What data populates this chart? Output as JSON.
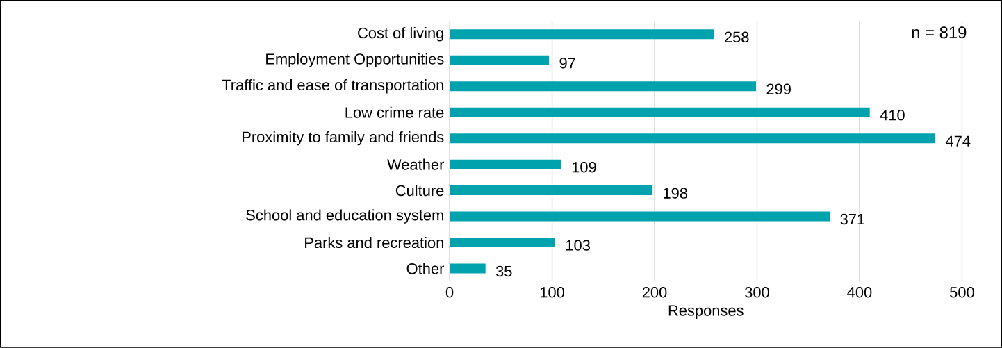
{
  "chart_data": {
    "type": "bar",
    "orientation": "horizontal",
    "categories": [
      "Cost of living",
      "Employment Opportunities",
      "Traffic and ease of transportation",
      "Low crime rate",
      "Proximity to family and friends",
      "Weather",
      "Culture",
      "School and education system",
      "Parks and recreation",
      "Other"
    ],
    "values": [
      258,
      97,
      299,
      410,
      474,
      109,
      198,
      371,
      103,
      35
    ],
    "color": "#00a2ad",
    "data_labels": true,
    "xlim": [
      0,
      500
    ],
    "xticks": [
      0,
      100,
      200,
      300,
      400,
      500
    ],
    "xlabel": "Responses",
    "grid": "x",
    "annotations": [
      "n = 819"
    ]
  }
}
